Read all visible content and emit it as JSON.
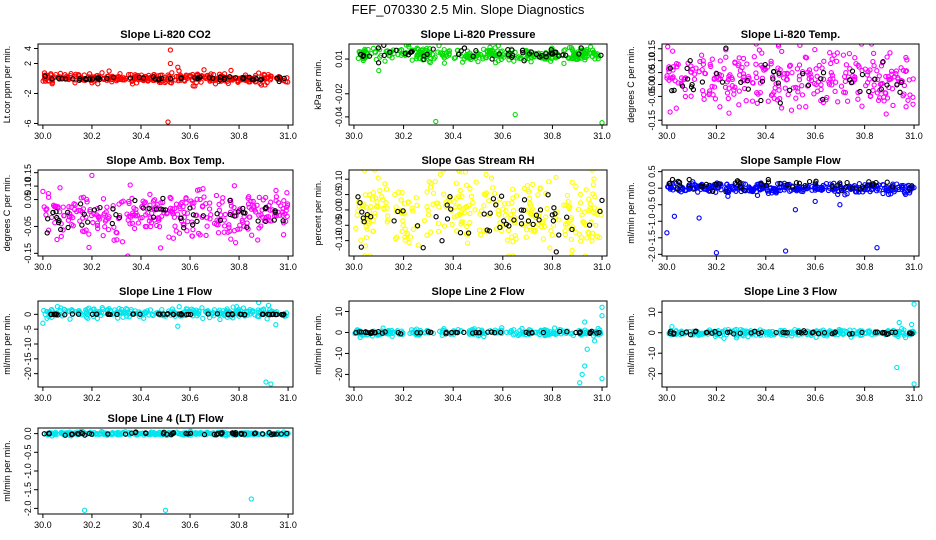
{
  "page_title": "FEF_070330  2.5 Min. Slope Diagnostics",
  "chart_data": [
    {
      "type": "scatter",
      "title": "Slope Li-820 CO2",
      "ylabel": "Lt.cor ppm per min.",
      "xlim": [
        29.98,
        31.02
      ],
      "ylim": [
        -6.2,
        4.6
      ],
      "xticks": [
        30.0,
        30.2,
        30.4,
        30.6,
        30.8,
        31.0
      ],
      "xtick_labels": [
        "30.0",
        "30.2",
        "30.4",
        "30.6",
        "30.8",
        "31.0"
      ],
      "yticks": [
        -6,
        -2,
        2,
        4
      ],
      "ytick_labels": [
        "-6",
        "-2",
        "2",
        "4"
      ],
      "series": [
        {
          "name": "colored",
          "color": "#ff0000",
          "center": 0.0,
          "spread": 0.35,
          "n": 320,
          "seed": 11
        },
        {
          "name": "black",
          "color": "#000000",
          "center": 0.0,
          "spread": 0.15,
          "n": 60,
          "seed": 12
        }
      ],
      "outliers": [
        {
          "x": 30.52,
          "y": 3.8
        },
        {
          "x": 30.52,
          "y": 2.0
        },
        {
          "x": 30.55,
          "y": 1.5
        },
        {
          "x": 30.51,
          "y": -5.8
        },
        {
          "x": 30.62,
          "y": -1.0
        },
        {
          "x": 30.27,
          "y": 1.0
        }
      ]
    },
    {
      "type": "scatter",
      "title": "Slope Li-820 Pressure",
      "ylabel": "kPa per min.",
      "xlim": [
        29.98,
        31.02
      ],
      "ylim": [
        -0.047,
        0.023
      ],
      "xticks": [
        30.0,
        30.2,
        30.4,
        30.6,
        30.8,
        31.0
      ],
      "xtick_labels": [
        "30.0",
        "30.2",
        "30.4",
        "30.6",
        "30.8",
        "31.0"
      ],
      "yticks": [
        -0.04,
        -0.02,
        0.01
      ],
      "ytick_labels": [
        "-0.04",
        "-0.02",
        "0.01"
      ],
      "series": [
        {
          "name": "colored",
          "color": "#00dd00",
          "center": 0.014,
          "spread": 0.003,
          "n": 320,
          "seed": 21
        },
        {
          "name": "black",
          "color": "#000000",
          "center": 0.014,
          "spread": 0.003,
          "n": 55,
          "seed": 22
        }
      ],
      "outliers": [
        {
          "x": 30.33,
          "y": -0.044
        },
        {
          "x": 30.65,
          "y": -0.038
        },
        {
          "x": 31.0,
          "y": -0.045
        },
        {
          "x": 30.1,
          "y": 0.0
        }
      ]
    },
    {
      "type": "scatter",
      "title": "Slope Li-820 Temp.",
      "ylabel": "degrees C per min.",
      "xlim": [
        29.98,
        31.02
      ],
      "ylim": [
        -0.17,
        0.17
      ],
      "xticks": [
        30.0,
        30.2,
        30.4,
        30.6,
        30.8,
        31.0
      ],
      "xtick_labels": [
        "30.0",
        "30.2",
        "30.4",
        "30.6",
        "30.8",
        "31.0"
      ],
      "yticks": [
        -0.15,
        -0.05,
        0.0,
        0.05,
        0.1,
        0.15
      ],
      "ytick_labels": [
        "-0.15",
        "-0.05",
        "0.00",
        "0.05",
        "0.10",
        "0.15"
      ],
      "series": [
        {
          "name": "colored",
          "color": "#ff00ff",
          "center": 0.02,
          "spread": 0.06,
          "n": 320,
          "seed": 31
        },
        {
          "name": "black",
          "color": "#000000",
          "center": 0.02,
          "spread": 0.04,
          "n": 45,
          "seed": 32
        }
      ],
      "outliers": []
    },
    {
      "type": "scatter",
      "title": "Slope Amb. Box Temp.",
      "ylabel": "degrees C per min.",
      "xlim": [
        29.98,
        31.02
      ],
      "ylim": [
        -0.16,
        0.16
      ],
      "xticks": [
        30.0,
        30.2,
        30.4,
        30.6,
        30.8,
        31.0
      ],
      "xtick_labels": [
        "30.0",
        "30.2",
        "30.4",
        "30.6",
        "30.8",
        "31.0"
      ],
      "yticks": [
        -0.15,
        -0.05,
        0.05,
        0.1,
        0.15
      ],
      "ytick_labels": [
        "-0.15",
        "-0.05",
        "0.05",
        "0.10",
        "0.15"
      ],
      "series": [
        {
          "name": "colored",
          "color": "#ff00ff",
          "center": 0.0,
          "spread": 0.045,
          "n": 320,
          "seed": 41
        },
        {
          "name": "black",
          "color": "#000000",
          "center": 0.0,
          "spread": 0.03,
          "n": 55,
          "seed": 42
        }
      ],
      "outliers": [
        {
          "x": 30.2,
          "y": 0.14
        },
        {
          "x": 30.48,
          "y": -0.13
        }
      ]
    },
    {
      "type": "scatter",
      "title": "Slope Gas Stream RH",
      "ylabel": "percent per min.",
      "xlim": [
        29.98,
        31.02
      ],
      "ylim": [
        -0.15,
        0.13
      ],
      "xticks": [
        30.0,
        30.2,
        30.4,
        30.6,
        30.8,
        31.0
      ],
      "xtick_labels": [
        "30.0",
        "30.2",
        "30.4",
        "30.6",
        "30.8",
        "31.0"
      ],
      "yticks": [
        -0.1,
        -0.05,
        0.0,
        0.05,
        0.1
      ],
      "ytick_labels": [
        "-0.10",
        "-0.05",
        "0.00",
        "0.05",
        "0.10"
      ],
      "series": [
        {
          "name": "colored",
          "color": "#ffff00",
          "center": -0.01,
          "spread": 0.06,
          "n": 320,
          "seed": 51
        },
        {
          "name": "black",
          "color": "#000000",
          "center": -0.02,
          "spread": 0.04,
          "n": 55,
          "seed": 52
        }
      ],
      "outliers": []
    },
    {
      "type": "scatter",
      "title": "Slope Sample Flow",
      "ylabel": "ml/min per min.",
      "xlim": [
        29.98,
        31.02
      ],
      "ylim": [
        -2.05,
        0.55
      ],
      "xticks": [
        30.0,
        30.2,
        30.4,
        30.6,
        30.8,
        31.0
      ],
      "xtick_labels": [
        "30.0",
        "30.2",
        "30.4",
        "30.6",
        "30.8",
        "31.0"
      ],
      "yticks": [
        -2.0,
        -1.5,
        -1.0,
        -0.5,
        0.0,
        0.5
      ],
      "ytick_labels": [
        "-2.0",
        "-1.5",
        "-1.0",
        "-0.5",
        "0.0",
        "0.5"
      ],
      "series": [
        {
          "name": "colored",
          "color": "#0000ff",
          "center": 0.0,
          "spread": 0.08,
          "n": 320,
          "seed": 61
        },
        {
          "name": "black",
          "color": "#000000",
          "center": 0.1,
          "spread": 0.1,
          "n": 55,
          "seed": 62
        }
      ],
      "outliers": [
        {
          "x": 30.0,
          "y": -1.35
        },
        {
          "x": 30.03,
          "y": -0.85
        },
        {
          "x": 30.13,
          "y": -0.9
        },
        {
          "x": 30.2,
          "y": -1.95
        },
        {
          "x": 30.48,
          "y": -1.9
        },
        {
          "x": 30.52,
          "y": -0.65
        },
        {
          "x": 30.6,
          "y": -0.4
        },
        {
          "x": 30.7,
          "y": -0.5
        },
        {
          "x": 30.85,
          "y": -1.8
        }
      ]
    },
    {
      "type": "scatter",
      "title": "Slope Line 1 Flow",
      "ylabel": "ml/min per min.",
      "xlim": [
        29.98,
        31.02
      ],
      "ylim": [
        -24.5,
        4.5
      ],
      "xticks": [
        30.0,
        30.2,
        30.4,
        30.6,
        30.8,
        31.0
      ],
      "xtick_labels": [
        "30.0",
        "30.2",
        "30.4",
        "30.6",
        "30.8",
        "31.0"
      ],
      "yticks": [
        -20,
        -15,
        -10,
        -5,
        0
      ],
      "ytick_labels": [
        "-20",
        "-15",
        "-10",
        "-5",
        "0"
      ],
      "series": [
        {
          "name": "colored",
          "color": "#00e5ee",
          "center": 0.5,
          "spread": 0.8,
          "n": 260,
          "seed": 71
        },
        {
          "name": "black",
          "color": "#000000",
          "center": 0.0,
          "spread": 0.1,
          "n": 60,
          "seed": 72
        }
      ],
      "outliers": [
        {
          "x": 30.93,
          "y": -23.5
        },
        {
          "x": 30.91,
          "y": -22.8
        },
        {
          "x": 30.0,
          "y": -3.0
        },
        {
          "x": 30.55,
          "y": -4.0
        },
        {
          "x": 30.88,
          "y": 4.0
        },
        {
          "x": 30.92,
          "y": 3.0
        },
        {
          "x": 30.95,
          "y": -3.5
        }
      ]
    },
    {
      "type": "scatter",
      "title": "Slope Line 2 Flow",
      "ylabel": "ml/min per min.",
      "xlim": [
        29.98,
        31.02
      ],
      "ylim": [
        -26,
        15
      ],
      "xticks": [
        30.0,
        30.2,
        30.4,
        30.6,
        30.8,
        31.0
      ],
      "xtick_labels": [
        "30.0",
        "30.2",
        "30.4",
        "30.6",
        "30.8",
        "31.0"
      ],
      "yticks": [
        -20,
        -10,
        0,
        10
      ],
      "ytick_labels": [
        "-20",
        "-10",
        "0",
        "10"
      ],
      "series": [
        {
          "name": "colored",
          "color": "#00e5ee",
          "center": 0.0,
          "spread": 0.8,
          "n": 260,
          "seed": 81
        },
        {
          "name": "black",
          "color": "#000000",
          "center": 0.0,
          "spread": 0.3,
          "n": 55,
          "seed": 82
        }
      ],
      "outliers": [
        {
          "x": 30.93,
          "y": -16
        },
        {
          "x": 30.92,
          "y": -20
        },
        {
          "x": 30.91,
          "y": -24
        },
        {
          "x": 30.94,
          "y": -8
        },
        {
          "x": 31.0,
          "y": 12
        },
        {
          "x": 31.0,
          "y": 8
        },
        {
          "x": 31.0,
          "y": -22
        },
        {
          "x": 30.97,
          "y": -4
        },
        {
          "x": 30.93,
          "y": 5
        }
      ]
    },
    {
      "type": "scatter",
      "title": "Slope Line 3 Flow",
      "ylabel": "ml/min per min.",
      "xlim": [
        29.98,
        31.02
      ],
      "ylim": [
        -26.5,
        15.5
      ],
      "xticks": [
        30.0,
        30.2,
        30.4,
        30.6,
        30.8,
        31.0
      ],
      "xtick_labels": [
        "30.0",
        "30.2",
        "30.4",
        "30.6",
        "30.8",
        "31.0"
      ],
      "yticks": [
        -20,
        -10,
        0,
        10
      ],
      "ytick_labels": [
        "-20",
        "-10",
        "0",
        "10"
      ],
      "series": [
        {
          "name": "colored",
          "color": "#00e5ee",
          "center": 0.0,
          "spread": 0.8,
          "n": 260,
          "seed": 91
        },
        {
          "name": "black",
          "color": "#000000",
          "center": 0.0,
          "spread": 0.4,
          "n": 55,
          "seed": 92
        }
      ],
      "outliers": [
        {
          "x": 31.0,
          "y": 14
        },
        {
          "x": 31.0,
          "y": -25
        },
        {
          "x": 30.93,
          "y": -17
        },
        {
          "x": 30.95,
          "y": 2
        },
        {
          "x": 30.99,
          "y": 4
        },
        {
          "x": 30.02,
          "y": 3
        },
        {
          "x": 30.94,
          "y": 5
        }
      ]
    },
    {
      "type": "scatter",
      "title": "Slope Line 4 (LT) Flow",
      "ylabel": "ml/min per min.",
      "xlim": [
        29.98,
        31.02
      ],
      "ylim": [
        -2.15,
        0.15
      ],
      "xticks": [
        30.0,
        30.2,
        30.4,
        30.6,
        30.8,
        31.0
      ],
      "xtick_labels": [
        "30.0",
        "30.2",
        "30.4",
        "30.6",
        "30.8",
        "31.0"
      ],
      "yticks": [
        -2.0,
        -1.5,
        -1.0,
        -0.5,
        0.0
      ],
      "ytick_labels": [
        "-2.0",
        "-1.5",
        "-1.0",
        "-0.5",
        "0.0"
      ],
      "series": [
        {
          "name": "colored",
          "color": "#00e5ee",
          "center": 0.0,
          "spread": 0.02,
          "n": 300,
          "seed": 101
        },
        {
          "name": "black",
          "color": "#000000",
          "center": 0.0,
          "spread": 0.02,
          "n": 60,
          "seed": 102
        }
      ],
      "outliers": [
        {
          "x": 30.17,
          "y": -2.05
        },
        {
          "x": 30.5,
          "y": -2.05
        },
        {
          "x": 30.85,
          "y": -1.75
        }
      ]
    }
  ]
}
